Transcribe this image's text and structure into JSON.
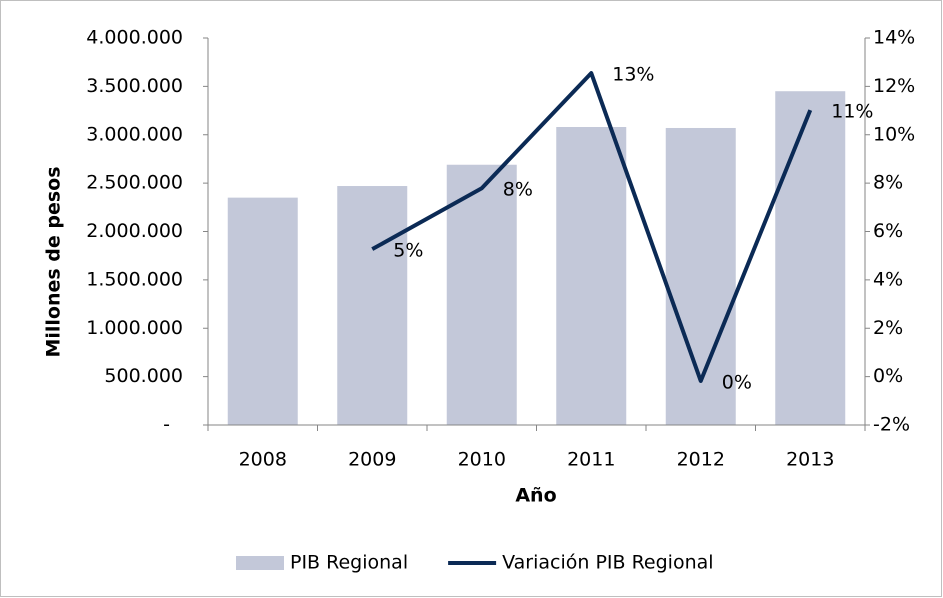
{
  "chart_data": {
    "type": "bar-line",
    "categories": [
      "2008",
      "2009",
      "2010",
      "2011",
      "2012",
      "2013"
    ],
    "series": [
      {
        "name": "PIB Regional",
        "type": "bar",
        "color": "#c3c8d9",
        "values": [
          2350000,
          2470000,
          2690000,
          3080000,
          3070000,
          3450000
        ]
      },
      {
        "name": "Variación PIB Regional",
        "type": "line",
        "axis": "y2",
        "color": "#0b2a55",
        "values": [
          null,
          5.27,
          7.79,
          12.55,
          -0.18,
          11.02
        ],
        "value_labels": [
          null,
          "5%",
          "8%",
          "13%",
          "0%",
          "11%"
        ]
      }
    ],
    "ylabel": "Millones de pesos",
    "xlabel": "Año",
    "ylim": [
      0,
      4000000
    ],
    "yticks": [
      {
        "value": 0,
        "label": "-"
      },
      {
        "value": 500000,
        "label": "500.000"
      },
      {
        "value": 1000000,
        "label": "1.000.000"
      },
      {
        "value": 1500000,
        "label": "1.500.000"
      },
      {
        "value": 2000000,
        "label": "2.000.000"
      },
      {
        "value": 2500000,
        "label": "2.500.000"
      },
      {
        "value": 3000000,
        "label": "3.000.000"
      },
      {
        "value": 3500000,
        "label": "3.500.000"
      },
      {
        "value": 4000000,
        "label": "4.000.000"
      }
    ],
    "y2lim": [
      -2,
      14
    ],
    "y2ticks": [
      {
        "value": -2,
        "label": "-2%"
      },
      {
        "value": 0,
        "label": "0%"
      },
      {
        "value": 2,
        "label": "2%"
      },
      {
        "value": 4,
        "label": "4%"
      },
      {
        "value": 6,
        "label": "6%"
      },
      {
        "value": 8,
        "label": "8%"
      },
      {
        "value": 10,
        "label": "10%"
      },
      {
        "value": 12,
        "label": "12%"
      },
      {
        "value": 14,
        "label": "14%"
      }
    ],
    "legend": "bottom"
  }
}
